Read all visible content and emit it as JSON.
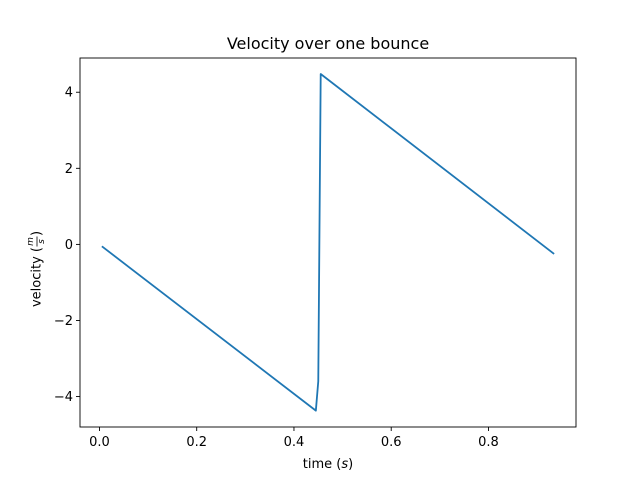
{
  "chart_data": {
    "type": "line",
    "title": "Velocity over one bounce",
    "xlabel_main": "time (",
    "xlabel_unit": "s",
    "xlabel_close": ")",
    "ylabel_main": "velocity (",
    "ylabel_num": "m",
    "ylabel_den": "s",
    "ylabel_close": ")",
    "xlim": [
      -0.04,
      0.98
    ],
    "ylim": [
      -4.8,
      4.9
    ],
    "xticks": [
      0.0,
      0.2,
      0.4,
      0.6,
      0.8
    ],
    "xtick_labels": [
      "0.0",
      "0.2",
      "0.4",
      "0.6",
      "0.8"
    ],
    "yticks": [
      -4,
      -2,
      0,
      2,
      4
    ],
    "ytick_labels": [
      "−4",
      "−2",
      "0",
      "2",
      "4"
    ],
    "grid": false,
    "series": [
      {
        "color": "#1f77b4",
        "x": [
          0.005,
          0.445,
          0.45,
          0.455,
          0.935
        ],
        "y": [
          -0.05,
          -4.37,
          -3.6,
          4.48,
          -0.25
        ]
      }
    ]
  }
}
